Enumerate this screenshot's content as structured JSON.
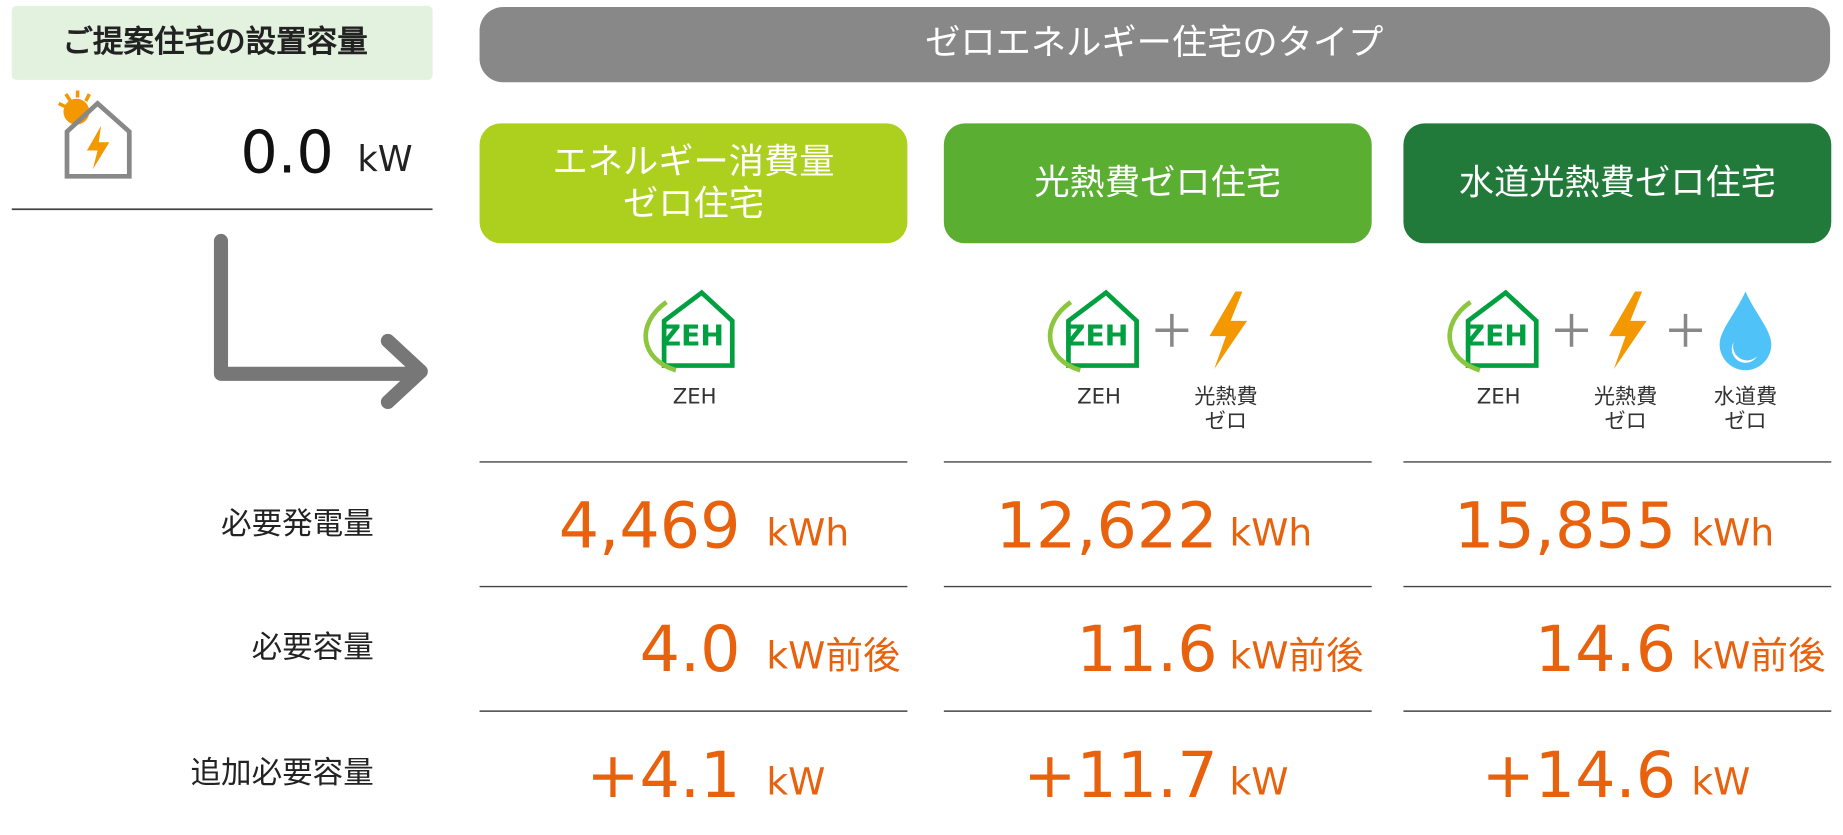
{
  "summary": {
    "title": "ご提案住宅の設置容量",
    "value": "0.0",
    "unit": "kW"
  },
  "header": "ゼロエネルギー住宅のタイプ",
  "row_labels": [
    "必要発電量",
    "必要容量",
    "追加必要容量"
  ],
  "types": [
    {
      "title": [
        "エネルギー消費量",
        "ゼロ住宅"
      ],
      "icons": [
        [
          "ZEH"
        ]
      ],
      "rows": [
        {
          "value": "4,469",
          "unit": "kWh"
        },
        {
          "value": "4.0",
          "unit": "kW前後"
        },
        {
          "value": "+4.1",
          "unit": "kW"
        }
      ]
    },
    {
      "title": [
        "光熱費ゼロ住宅"
      ],
      "icons": [
        [
          "ZEH"
        ],
        [
          "光熱費",
          "ゼロ"
        ]
      ],
      "rows": [
        {
          "value": "12,622",
          "unit": "kWh"
        },
        {
          "value": "11.6",
          "unit": "kW前後"
        },
        {
          "value": "+11.7",
          "unit": "kW"
        }
      ]
    },
    {
      "title": [
        "水道光熱費ゼロ住宅"
      ],
      "icons": [
        [
          "ZEH"
        ],
        [
          "光熱費",
          "ゼロ"
        ],
        [
          "水道費",
          "ゼロ"
        ]
      ],
      "rows": [
        {
          "value": "15,855",
          "unit": "kWh"
        },
        {
          "value": "14.6",
          "unit": "kW前後"
        },
        {
          "value": "+14.6",
          "unit": "kW"
        }
      ]
    }
  ]
}
